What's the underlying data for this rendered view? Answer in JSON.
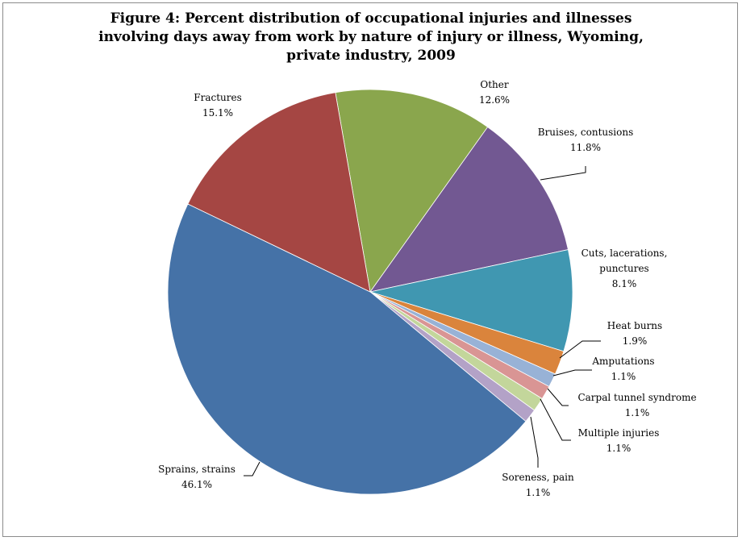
{
  "chart_data": {
    "type": "pie",
    "title_lines": [
      "Figure 4: Percent distribution of occupational injuries and illnesses",
      "involving days away from work by nature of injury or illness, Wyoming,",
      "private industry, 2009"
    ],
    "unit": "%",
    "slices": [
      {
        "label": [
          "Other"
        ],
        "value": 12.6,
        "value_label": "12.6%",
        "color": "#8aa64d"
      },
      {
        "label": [
          "Bruises, contusions"
        ],
        "value": 11.8,
        "value_label": "11.8%",
        "color": "#725892"
      },
      {
        "label": [
          "Cuts, lacerations,",
          "punctures"
        ],
        "value": 8.1,
        "value_label": "8.1%",
        "color": "#4097b1"
      },
      {
        "label": [
          "Heat burns"
        ],
        "value": 1.9,
        "value_label": "1.9%",
        "color": "#da843c"
      },
      {
        "label": [
          "Amputations"
        ],
        "value": 1.1,
        "value_label": "1.1%",
        "color": "#98b2d6"
      },
      {
        "label": [
          "Carpal tunnel syndrome"
        ],
        "value": 1.1,
        "value_label": "1.1%",
        "color": "#d99594"
      },
      {
        "label": [
          "Multiple injuries"
        ],
        "value": 1.1,
        "value_label": "1.1%",
        "color": "#c3d69b"
      },
      {
        "label": [
          "Soreness, pain"
        ],
        "value": 1.1,
        "value_label": "1.1%",
        "color": "#b3a2c7"
      },
      {
        "label": [
          "Sprains, strains"
        ],
        "value": 46.1,
        "value_label": "46.1%",
        "color": "#4572a7"
      },
      {
        "label": [
          "Fractures"
        ],
        "value": 15.1,
        "value_label": "15.1%",
        "color": "#a54643"
      }
    ]
  }
}
